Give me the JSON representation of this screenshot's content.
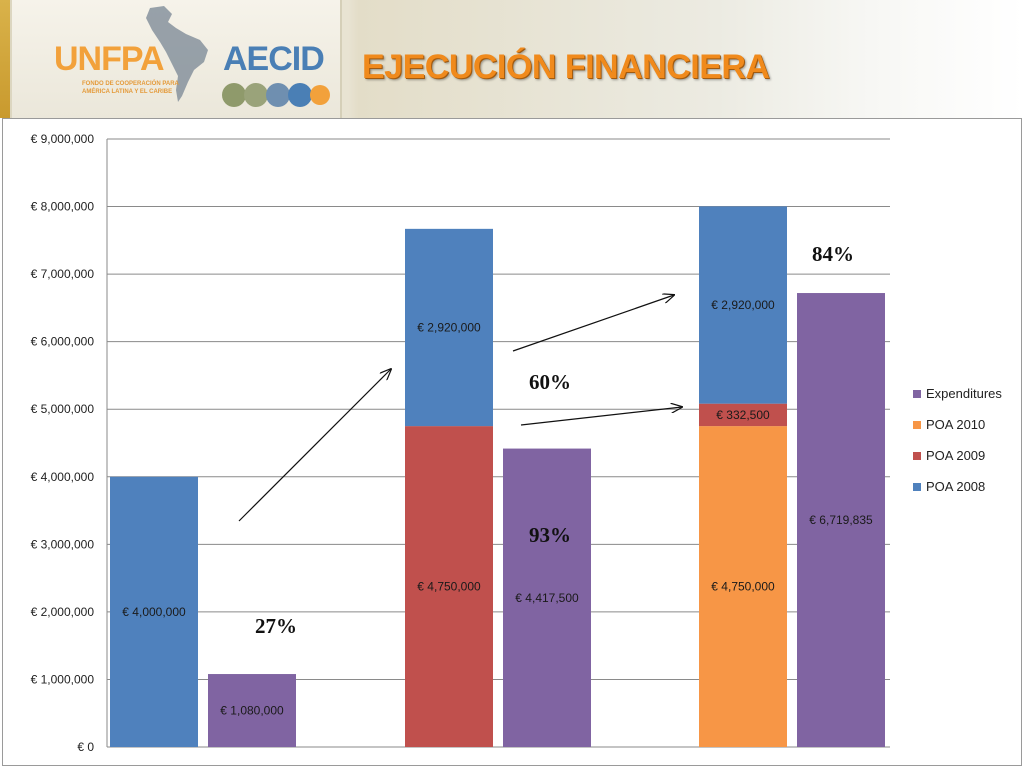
{
  "header": {
    "title": "EJECUCIÓN FINANCIERA",
    "logos": {
      "unfpa": "UNFPA",
      "unfpa_subtitle": "FONDO DE COOPERACIÓN PARA AMÉRICA LATINA Y EL CARIBE",
      "aecid": "AECID"
    }
  },
  "colors": {
    "poa2008": "#4f81bd",
    "poa2009": "#c0504d",
    "poa2010": "#f79646",
    "expenditures": "#8064a2",
    "title": "#f08a1c"
  },
  "chart_data": {
    "type": "bar",
    "stacked": true,
    "ylim": [
      0,
      9000000
    ],
    "y_ticks": [
      "€ 0",
      "€ 1,000,000",
      "€ 2,000,000",
      "€ 3,000,000",
      "€ 4,000,000",
      "€ 5,000,000",
      "€ 6,000,000",
      "€ 7,000,000",
      "€ 8,000,000",
      "€ 9,000,000"
    ],
    "y_tick_values": [
      0,
      1000000,
      2000000,
      3000000,
      4000000,
      5000000,
      6000000,
      7000000,
      8000000,
      9000000
    ],
    "grid": true,
    "legend_placement": "right",
    "legend": [
      "Expenditures",
      "POA 2010",
      "POA 2009",
      "POA 2008"
    ],
    "groups": [
      {
        "budget": [
          {
            "series": "POA 2008",
            "value": 4000000,
            "label": "€ 4,000,000"
          }
        ],
        "expenditures": {
          "value": 1080000,
          "label": "€ 1,080,000"
        },
        "percent": "27%"
      },
      {
        "budget": [
          {
            "series": "POA 2009",
            "value": 4750000,
            "label": "€ 4,750,000"
          },
          {
            "series": "POA 2008",
            "value": 2920000,
            "label": "€ 2,920,000"
          }
        ],
        "expenditures": {
          "value": 4417500,
          "label": "€ 4,417,500"
        },
        "percent": "93%",
        "extra_percent": "60%"
      },
      {
        "budget": [
          {
            "series": "POA 2010",
            "value": 4750000,
            "label": "€ 4,750,000"
          },
          {
            "series": "POA 2009",
            "value": 332500,
            "label": "€ 332,500"
          },
          {
            "series": "POA 2008",
            "value": 2920000,
            "label": "€ 2,920,000"
          }
        ],
        "expenditures": {
          "value": 6719835,
          "label": "€ 6,719,835"
        },
        "percent": "84%"
      }
    ]
  }
}
